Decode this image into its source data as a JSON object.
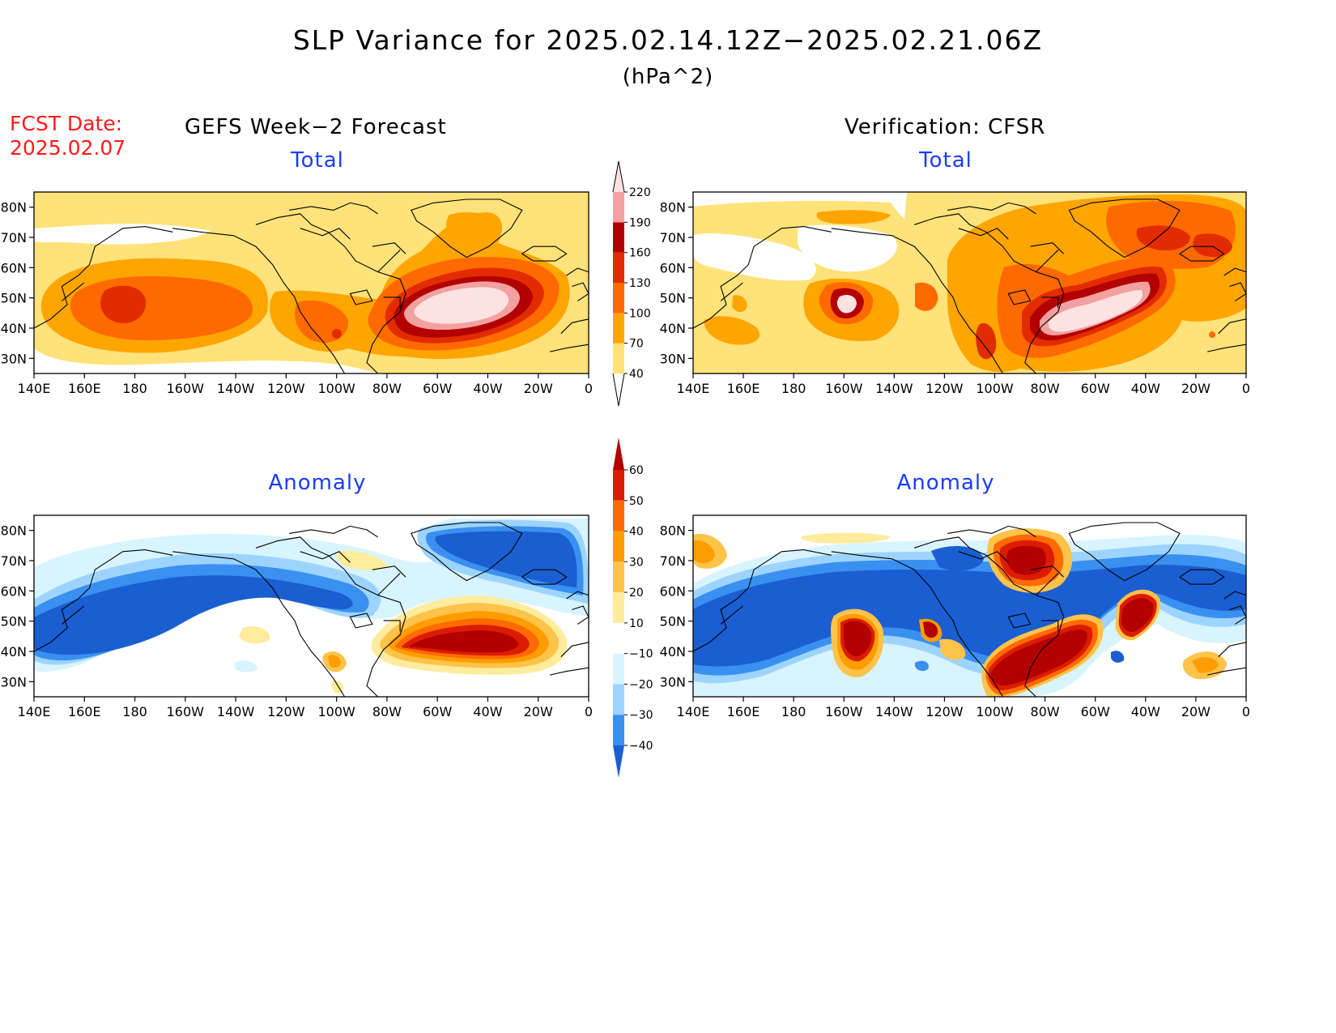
{
  "title": "SLP Variance for 2025.02.14.12Z−2025.02.21.06Z",
  "units": "(hPa^2)",
  "fcst_label": "FCST Date:",
  "fcst_date": "2025.02.07",
  "columns": {
    "left": "GEFS Week−2 Forecast",
    "right": "Verification: CFSR"
  },
  "panels": {
    "top_left_label": "Total",
    "top_right_label": "Total",
    "bottom_left_label": "Anomaly",
    "bottom_right_label": "Anomaly"
  },
  "axes": {
    "lon_ticks": [
      "140E",
      "160E",
      "180",
      "160W",
      "140W",
      "120W",
      "100W",
      "80W",
      "60W",
      "40W",
      "20W",
      "0"
    ],
    "lat_ticks": [
      "80N",
      "70N",
      "60N",
      "50N",
      "40N",
      "30N"
    ]
  },
  "colorbars": {
    "total": {
      "labels": [
        "40",
        "70",
        "100",
        "130",
        "160",
        "190",
        "220"
      ],
      "colors": [
        "#ffffff",
        "#ffe27a",
        "#ffa500",
        "#ff6a00",
        "#e22c00",
        "#b30000",
        "#f2a0a0",
        "#fde2e2"
      ]
    },
    "anomaly": {
      "labels": [
        "60",
        "50",
        "40",
        "30",
        "20",
        "10",
        "−10",
        "−20",
        "−30",
        "−40"
      ],
      "colors": [
        "#b30000",
        "#dc1c00",
        "#ff6a00",
        "#ff9d00",
        "#ffc34a",
        "#ffec9c",
        "#ffffff",
        "#d8f4ff",
        "#9dd4ff",
        "#3a90f0",
        "#1a5ed2"
      ]
    }
  }
}
